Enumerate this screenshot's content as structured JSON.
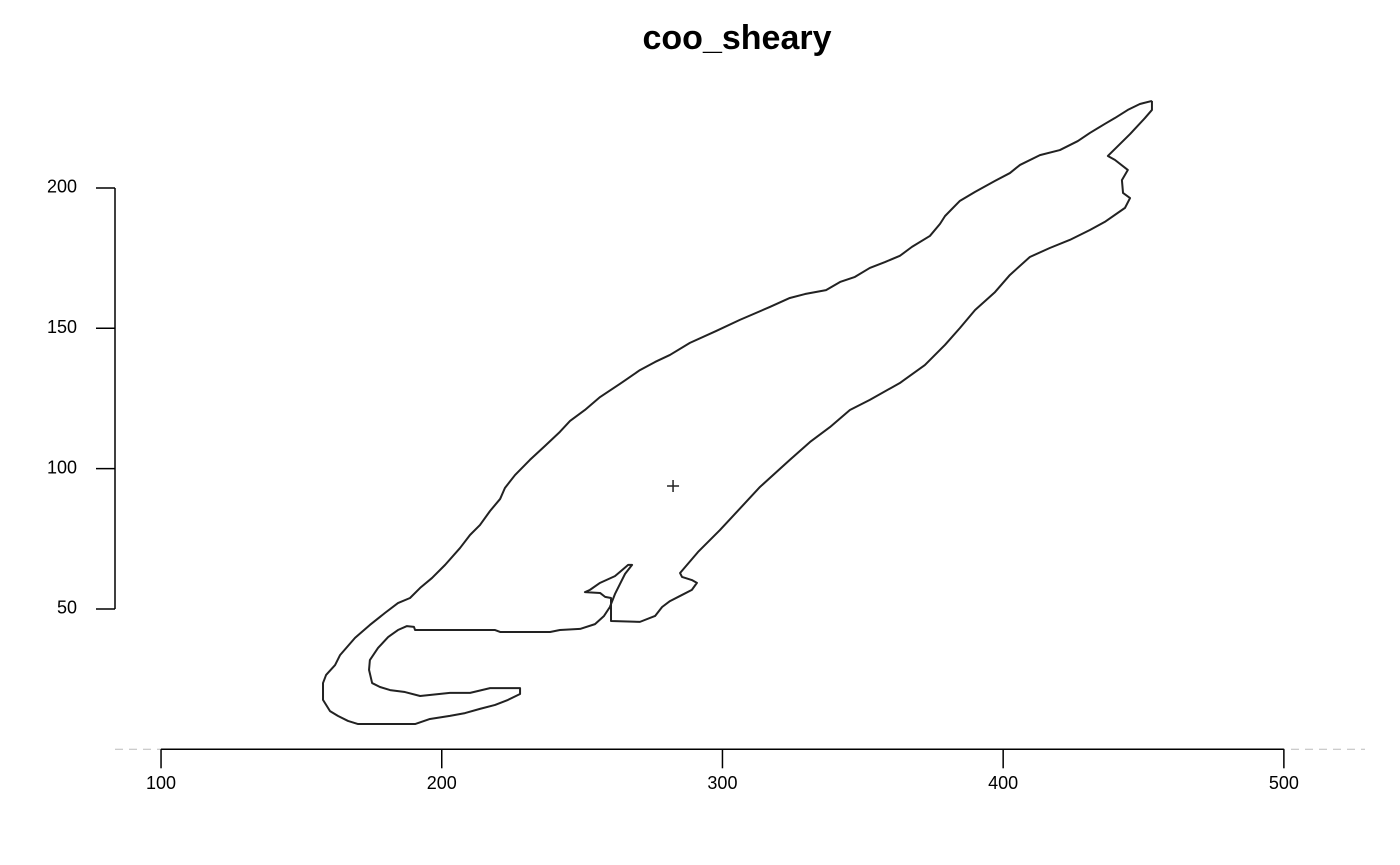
{
  "chart_data": {
    "type": "line",
    "title": "coo_sheary",
    "color": "#222222",
    "x": [
      453.0,
      448.7,
      444.4,
      439.8,
      436.2,
      430.9,
      426.6,
      420.2,
      413.1,
      406.0,
      402.4,
      397.1,
      390.0,
      384.6,
      379.3,
      377.5,
      373.9,
      367.5,
      363.2,
      357.9,
      352.5,
      347.2,
      341.9,
      336.9,
      329.4,
      324.0,
      316.9,
      306.2,
      297.7,
      288.4,
      281.3,
      276.0,
      270.6,
      263.5,
      256.4,
      251.0,
      245.7,
      242.1,
      236.8,
      231.4,
      226.1,
      222.5,
      220.8,
      217.2,
      213.6,
      210.1,
      206.5,
      201.2,
      196.5,
      192.3,
      188.7,
      184.4,
      179.8,
      174.4,
      169.1,
      163.8,
      162.0,
      158.8,
      157.7,
      157.7,
      160.2,
      163.0,
      166.6,
      170.2,
      190.5,
      195.8,
      202.9,
      208.3,
      213.6,
      219.0,
      223.6,
      227.9,
      227.9,
      217.2,
      210.1,
      202.9,
      192.3,
      186.9,
      181.6,
      178.0,
      175.2,
      174.1,
      174.4,
      177.3,
      180.9,
      184.4,
      187.6,
      190.1,
      190.5,
      219.0,
      220.8,
      238.6,
      242.1,
      249.3,
      254.6,
      257.8,
      259.9,
      261.7,
      263.5,
      265.3,
      267.8,
      266.4,
      263.5,
      261.7,
      256.4,
      252.8,
      251.0,
      256.4,
      258.2,
      260.3,
      260.3,
      270.6,
      276.0,
      278.5,
      281.3,
      285.6,
      289.1,
      290.9,
      289.1,
      285.6,
      284.9,
      291.3,
      299.1,
      313.4,
      324.0,
      331.2,
      338.3,
      345.4,
      352.5,
      363.2,
      372.1,
      379.3,
      384.6,
      390.0,
      397.1,
      402.4,
      409.5,
      416.6,
      423.8,
      430.9,
      436.2,
      443.4,
      445.2,
      442.7,
      442.3,
      444.4,
      439.8,
      437.3,
      445.2,
      450.5,
      453.0,
      453.0
    ],
    "values": [
      231.0,
      229.9,
      227.8,
      224.9,
      222.8,
      219.6,
      216.7,
      213.5,
      211.7,
      208.2,
      205.3,
      202.5,
      198.6,
      195.4,
      190.0,
      187.2,
      182.9,
      179.0,
      175.8,
      173.6,
      171.5,
      168.3,
      166.5,
      163.6,
      162.2,
      160.8,
      157.6,
      153.0,
      149.0,
      144.8,
      140.5,
      138.0,
      135.1,
      130.2,
      125.5,
      120.9,
      117.0,
      113.1,
      108.1,
      103.1,
      97.7,
      93.1,
      89.2,
      84.9,
      79.9,
      76.4,
      71.7,
      65.7,
      61.0,
      57.5,
      53.9,
      52.1,
      48.6,
      44.3,
      39.7,
      33.6,
      30.0,
      26.5,
      23.6,
      17.6,
      13.6,
      11.9,
      10.1,
      9.0,
      9.0,
      10.8,
      11.9,
      12.9,
      14.4,
      15.8,
      17.6,
      19.7,
      21.8,
      21.8,
      20.1,
      20.1,
      19.0,
      20.4,
      21.1,
      22.2,
      23.6,
      28.3,
      31.8,
      36.1,
      40.0,
      42.5,
      43.9,
      43.6,
      42.5,
      42.5,
      41.8,
      41.8,
      42.5,
      42.9,
      44.6,
      47.5,
      50.7,
      55.3,
      58.9,
      62.5,
      65.7,
      65.7,
      63.2,
      61.7,
      59.3,
      56.8,
      56.0,
      55.7,
      54.3,
      53.9,
      45.7,
      45.4,
      47.5,
      50.7,
      52.8,
      55.0,
      56.8,
      59.3,
      60.3,
      61.4,
      62.8,
      70.3,
      78.1,
      93.5,
      103.1,
      109.5,
      114.8,
      120.9,
      124.5,
      130.5,
      136.9,
      144.1,
      150.1,
      156.5,
      162.9,
      169.0,
      175.4,
      178.6,
      181.5,
      185.0,
      187.9,
      192.9,
      196.4,
      198.2,
      202.8,
      206.4,
      210.0,
      211.4,
      219.2,
      224.9,
      227.8,
      231.0
    ],
    "centroid": {
      "x": 282.4,
      "y": 93.8
    },
    "xlim": [
      83.6,
      528.9
    ],
    "ylim": [
      0,
      235
    ],
    "xticks": [
      100,
      200,
      300,
      400,
      500
    ],
    "yticks": [
      50,
      100,
      150,
      200
    ]
  }
}
